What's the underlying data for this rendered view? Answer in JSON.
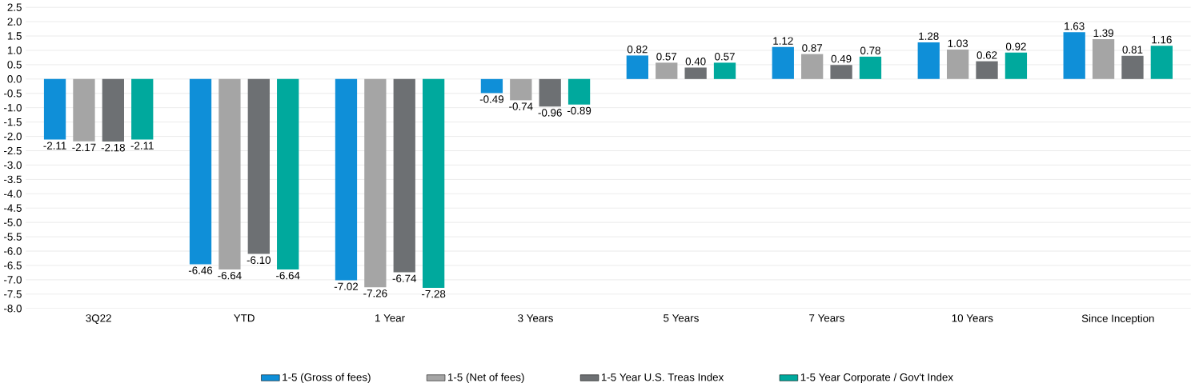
{
  "chart_data": {
    "type": "bar",
    "categories": [
      "3Q22",
      "YTD",
      "1 Year",
      "3 Years",
      "5 Years",
      "7 Years",
      "10 Years",
      "Since Inception"
    ],
    "series": [
      {
        "name": "1-5 (Gross of fees)",
        "color": "#0f8fd8",
        "values": [
          -2.11,
          -6.46,
          -7.02,
          -0.49,
          0.82,
          1.12,
          1.28,
          1.63
        ],
        "value_labels": [
          "-2.11",
          "-6.46",
          "-7.02",
          "-0.49",
          "0.82",
          "1.12",
          "1.28",
          "1.63"
        ]
      },
      {
        "name": "1-5 (Net of fees)",
        "color": "#a5a5a5",
        "values": [
          -2.17,
          -6.64,
          -7.26,
          -0.74,
          0.57,
          0.87,
          1.03,
          1.39
        ],
        "value_labels": [
          "-2.17",
          "-6.64",
          "-7.26",
          "-0.74",
          "0.57",
          "0.87",
          "1.03",
          "1.39"
        ]
      },
      {
        "name": "1-5 Year U.S. Treas Index",
        "color": "#6d7073",
        "values": [
          -2.18,
          -6.1,
          -6.74,
          -0.96,
          0.4,
          0.49,
          0.62,
          0.81
        ],
        "value_labels": [
          "-2.18",
          "-6.10",
          "-6.74",
          "-0.96",
          "0.40",
          "0.49",
          "0.62",
          "0.81"
        ]
      },
      {
        "name": "1-5 Year Corporate / Gov't Index",
        "color": "#00a99d",
        "values": [
          -2.11,
          -6.64,
          -7.28,
          -0.89,
          0.57,
          0.78,
          0.92,
          1.16
        ],
        "value_labels": [
          "-2.11",
          "-6.64",
          "-7.28",
          "-0.89",
          "0.57",
          "0.78",
          "0.92",
          "1.16"
        ]
      }
    ],
    "ylim": [
      -8,
      2.5
    ],
    "yticks": [
      {
        "value": -8,
        "label": "-8.0"
      },
      {
        "value": -7.5,
        "label": "-7.5"
      },
      {
        "value": -7,
        "label": "-7.0"
      },
      {
        "value": -6.5,
        "label": "-6.5"
      },
      {
        "value": -6,
        "label": "-6.0"
      },
      {
        "value": -5.5,
        "label": "-5.5"
      },
      {
        "value": -5,
        "label": "-5.0"
      },
      {
        "value": -4.5,
        "label": "-4.5"
      },
      {
        "value": -4,
        "label": "-4.0"
      },
      {
        "value": -3.5,
        "label": "-3.5"
      },
      {
        "value": -3,
        "label": "-3.0"
      },
      {
        "value": -2.5,
        "label": "-2.5"
      },
      {
        "value": -2,
        "label": "-2.0"
      },
      {
        "value": -1.5,
        "label": "-1.5"
      },
      {
        "value": -1,
        "label": "-1.0"
      },
      {
        "value": -0.5,
        "label": "-0.5"
      },
      {
        "value": 0,
        "label": "0.0"
      },
      {
        "value": 0.5,
        "label": "0.5"
      },
      {
        "value": 1,
        "label": "1.0"
      },
      {
        "value": 1.5,
        "label": "1.5"
      },
      {
        "value": 2,
        "label": "2.0"
      },
      {
        "value": 2.5,
        "label": "2.5"
      }
    ],
    "grid": "y",
    "legend": "bottom"
  }
}
